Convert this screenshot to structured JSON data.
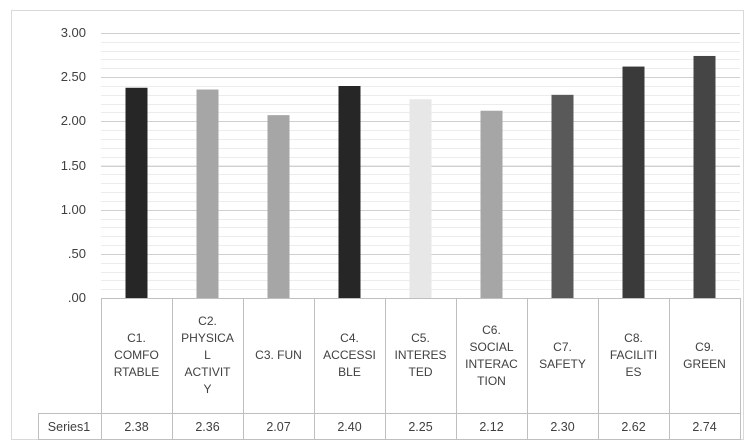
{
  "chart_data": {
    "type": "bar",
    "categories": [
      [
        "C1.",
        "COMFO",
        "RTABLE"
      ],
      [
        "C2.",
        "PHYSICA",
        "L",
        "ACTIVIT",
        "Y"
      ],
      [
        "C3. FUN"
      ],
      [
        "C4.",
        "ACCESSI",
        "BLE"
      ],
      [
        "C5.",
        "INTERES",
        "TED"
      ],
      [
        "C6.",
        "SOCIAL",
        "INTERAC",
        "TION"
      ],
      [
        "C7.",
        "SAFETY"
      ],
      [
        "C8.",
        "FACILITI",
        "ES"
      ],
      [
        "C9.",
        "GREEN"
      ]
    ],
    "series": [
      {
        "name": "Series1",
        "values": [
          2.38,
          2.36,
          2.07,
          2.4,
          2.25,
          2.12,
          2.3,
          2.62,
          2.74
        ],
        "table_values": [
          "2.38",
          "2.36",
          "2.07",
          "2.40",
          "2.25",
          "2.12",
          "2.30",
          "2.62",
          "2.74"
        ]
      }
    ],
    "bar_colors": [
      "#262626",
      "#a6a6a6",
      "#a6a6a6",
      "#262626",
      "#e7e7e7",
      "#a6a6a6",
      "#595959",
      "#3a3a3a",
      "#454545"
    ],
    "y_tick_labels": [
      "3.00",
      "2.50",
      "2.00",
      "1.50",
      "1.00",
      ".50",
      ".00"
    ],
    "y_ticks": [
      3.0,
      2.5,
      2.0,
      1.5,
      1.0,
      0.5,
      0.0
    ],
    "ylim": [
      0,
      3
    ],
    "minor_gridlines": true,
    "data_table": true,
    "legend": "none",
    "title": "",
    "xlabel": "",
    "ylabel": ""
  }
}
